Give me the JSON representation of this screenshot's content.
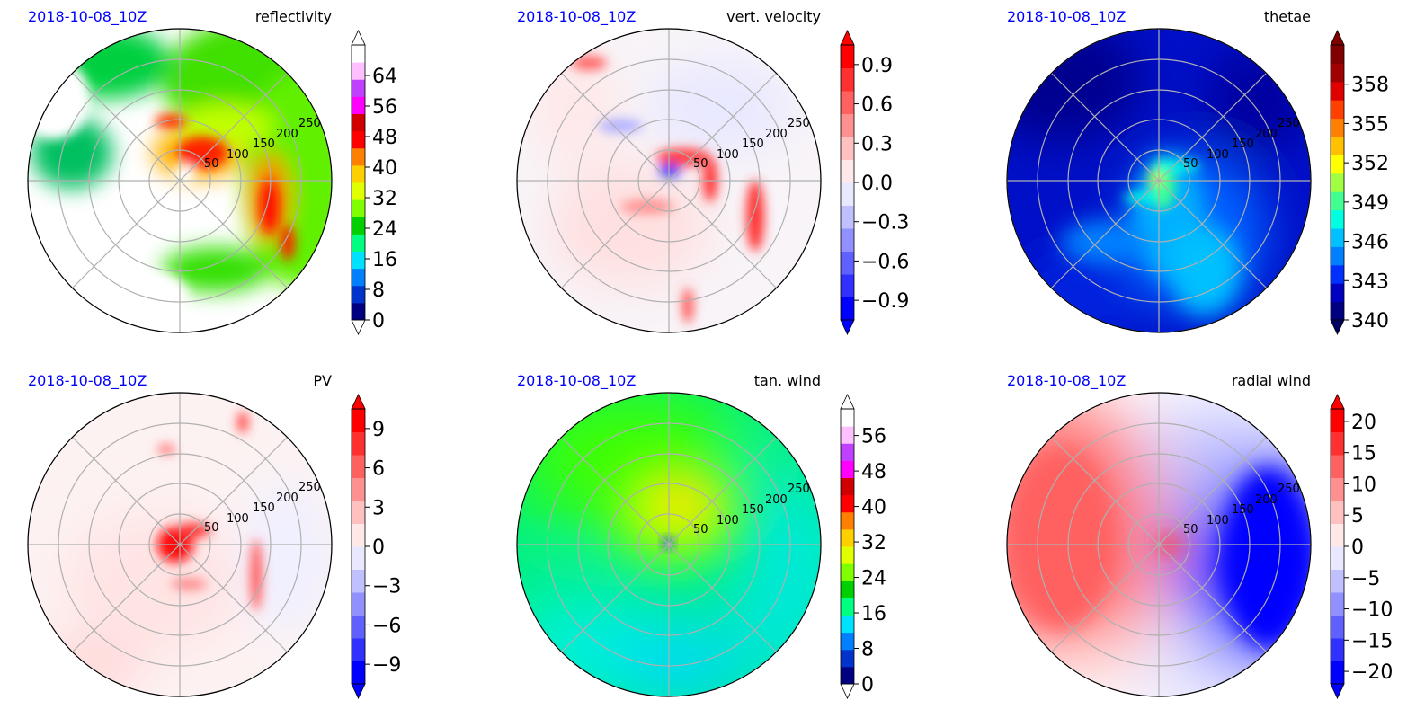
{
  "chart_data": [
    {
      "type": "heatmap",
      "date": "2018-10-08_10Z",
      "title": "reflectivity",
      "projection": "polar",
      "ring_labels": [
        "50",
        "100",
        "150",
        "200",
        "250"
      ],
      "colorbar": {
        "ticks": [
          "0",
          "8",
          "16",
          "24",
          "32",
          "40",
          "48",
          "56",
          "64"
        ],
        "tick_values": [
          0,
          8,
          16,
          24,
          32,
          40,
          48,
          56,
          64
        ],
        "range": [
          0,
          72
        ],
        "extend": "both",
        "colors": [
          "#000080",
          "#0033cc",
          "#0080ff",
          "#00e0ff",
          "#00ff80",
          "#00d000",
          "#80ff00",
          "#e0ff00",
          "#ffd000",
          "#ff8000",
          "#ff0000",
          "#d00000",
          "#ff00ff",
          "#c040ff",
          "#ffc0ff",
          "#ffffff"
        ]
      },
      "extend_colors": {
        "low": "#ffffff",
        "high": "#ffffff"
      }
    },
    {
      "type": "heatmap",
      "date": "2018-10-08_10Z",
      "title": "vert. velocity",
      "projection": "polar",
      "ring_labels": [
        "50",
        "100",
        "150",
        "200",
        "250"
      ],
      "colorbar": {
        "ticks": [
          "0.9",
          "0.6",
          "0.3",
          "0.0",
          "−0.3",
          "−0.6",
          "−0.9"
        ],
        "tick_values": [
          0.9,
          0.6,
          0.3,
          0.0,
          -0.3,
          -0.6,
          -0.9
        ],
        "range": [
          -1.05,
          1.05
        ],
        "extend": "both",
        "colors": [
          "#0000ff",
          "#3030ff",
          "#6060ff",
          "#9090ff",
          "#c0c0ff",
          "#e8e8ff",
          "#ffe8e8",
          "#ffc0c0",
          "#ff9090",
          "#ff6060",
          "#ff3030",
          "#ff0000"
        ]
      },
      "extend_colors": {
        "low": "#0000ff",
        "high": "#ff0000"
      }
    },
    {
      "type": "heatmap",
      "date": "2018-10-08_10Z",
      "title": "thetae",
      "projection": "polar",
      "ring_labels": [
        "50",
        "100",
        "150",
        "200",
        "250"
      ],
      "colorbar": {
        "ticks": [
          "358",
          "355",
          "352",
          "349",
          "346",
          "343",
          "340"
        ],
        "tick_values": [
          358,
          355,
          352,
          349,
          346,
          343,
          340
        ],
        "range": [
          340,
          361
        ],
        "extend": "both",
        "colors": [
          "#000080",
          "#0000c0",
          "#0030ff",
          "#0080ff",
          "#00c0ff",
          "#00ffe0",
          "#40ff90",
          "#a0ff40",
          "#ffff00",
          "#ffc000",
          "#ff8000",
          "#ff4000",
          "#e00000",
          "#a00000",
          "#800000"
        ]
      },
      "extend_colors": {
        "low": "#000060",
        "high": "#800000"
      }
    },
    {
      "type": "heatmap",
      "date": "2018-10-08_10Z",
      "title": "PV",
      "projection": "polar",
      "ring_labels": [
        "50",
        "100",
        "150",
        "200",
        "250"
      ],
      "colorbar": {
        "ticks": [
          "9",
          "6",
          "3",
          "0",
          "−3",
          "−6",
          "−9"
        ],
        "tick_values": [
          9,
          6,
          3,
          0,
          -3,
          -6,
          -9
        ],
        "range": [
          -10.5,
          10.5
        ],
        "extend": "both",
        "colors": [
          "#0000ff",
          "#3030ff",
          "#6060ff",
          "#9090ff",
          "#c0c0ff",
          "#e8e8ff",
          "#ffe8e8",
          "#ffc0c0",
          "#ff9090",
          "#ff6060",
          "#ff3030",
          "#ff0000"
        ]
      },
      "extend_colors": {
        "low": "#0000ff",
        "high": "#ff0000"
      }
    },
    {
      "type": "heatmap",
      "date": "2018-10-08_10Z",
      "title": "tan. wind",
      "projection": "polar",
      "ring_labels": [
        "50",
        "100",
        "150",
        "200",
        "250"
      ],
      "colorbar": {
        "ticks": [
          "56",
          "48",
          "40",
          "32",
          "24",
          "16",
          "8",
          "0"
        ],
        "tick_values": [
          56,
          48,
          40,
          32,
          24,
          16,
          8,
          0
        ],
        "range": [
          0,
          62
        ],
        "extend": "both",
        "colors": [
          "#000080",
          "#0033cc",
          "#0080ff",
          "#00e0ff",
          "#00ff80",
          "#00d000",
          "#80ff00",
          "#e0ff00",
          "#ffd000",
          "#ff8000",
          "#ff0000",
          "#d00000",
          "#ff00ff",
          "#c040ff",
          "#ffc0ff",
          "#ffffff"
        ]
      },
      "extend_colors": {
        "low": "#ffffff",
        "high": "#ffffff"
      }
    },
    {
      "type": "heatmap",
      "date": "2018-10-08_10Z",
      "title": "radial wind",
      "projection": "polar",
      "ring_labels": [
        "50",
        "100",
        "150",
        "200",
        "250"
      ],
      "colorbar": {
        "ticks": [
          "20",
          "15",
          "10",
          "5",
          "0",
          "−5",
          "−10",
          "−15",
          "−20"
        ],
        "tick_values": [
          20,
          15,
          10,
          5,
          0,
          -5,
          -10,
          -15,
          -20
        ],
        "range": [
          -22,
          22
        ],
        "extend": "both",
        "colors": [
          "#0000ff",
          "#3030ff",
          "#6060ff",
          "#9090ff",
          "#c0c0ff",
          "#e8e8ff",
          "#ffe8e8",
          "#ffc0c0",
          "#ff9090",
          "#ff6060",
          "#ff3030",
          "#ff0000"
        ]
      },
      "extend_colors": {
        "low": "#0000ff",
        "high": "#ff0000"
      }
    }
  ]
}
